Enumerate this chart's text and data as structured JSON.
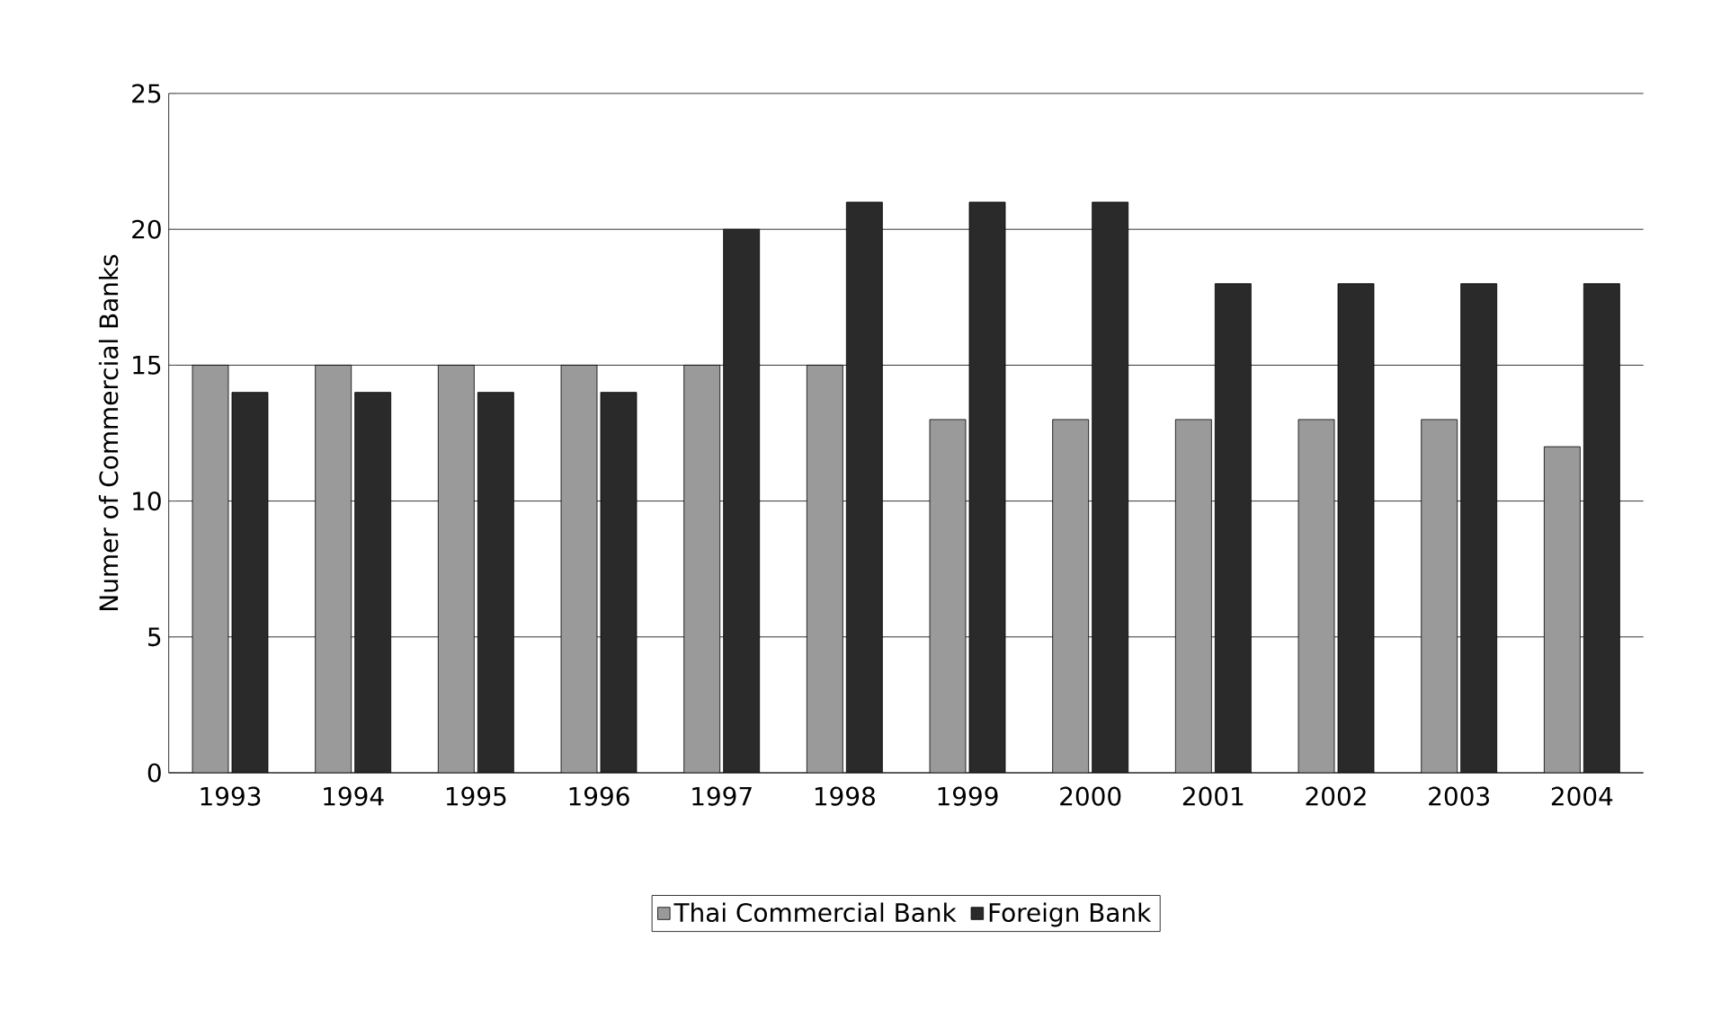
{
  "chart_data": {
    "type": "bar",
    "ylabel": "Numer of Commercial Banks",
    "categories": [
      "1993",
      "1994",
      "1995",
      "1996",
      "1997",
      "1998",
      "1999",
      "2000",
      "2001",
      "2002",
      "2003",
      "2004"
    ],
    "series": [
      {
        "name": "Thai Commercial Bank",
        "color": "#9a9a9a",
        "values": [
          15,
          15,
          15,
          15,
          15,
          15,
          13,
          13,
          13,
          13,
          13,
          12
        ]
      },
      {
        "name": "Foreign Bank",
        "color": "#2a2a2a",
        "values": [
          14,
          14,
          14,
          14,
          20,
          21,
          21,
          21,
          18,
          18,
          18,
          18
        ]
      }
    ],
    "ylim": [
      0,
      25
    ],
    "yticks": [
      0,
      5,
      10,
      15,
      20,
      25
    ],
    "grid": "y",
    "legend": "bottom"
  }
}
